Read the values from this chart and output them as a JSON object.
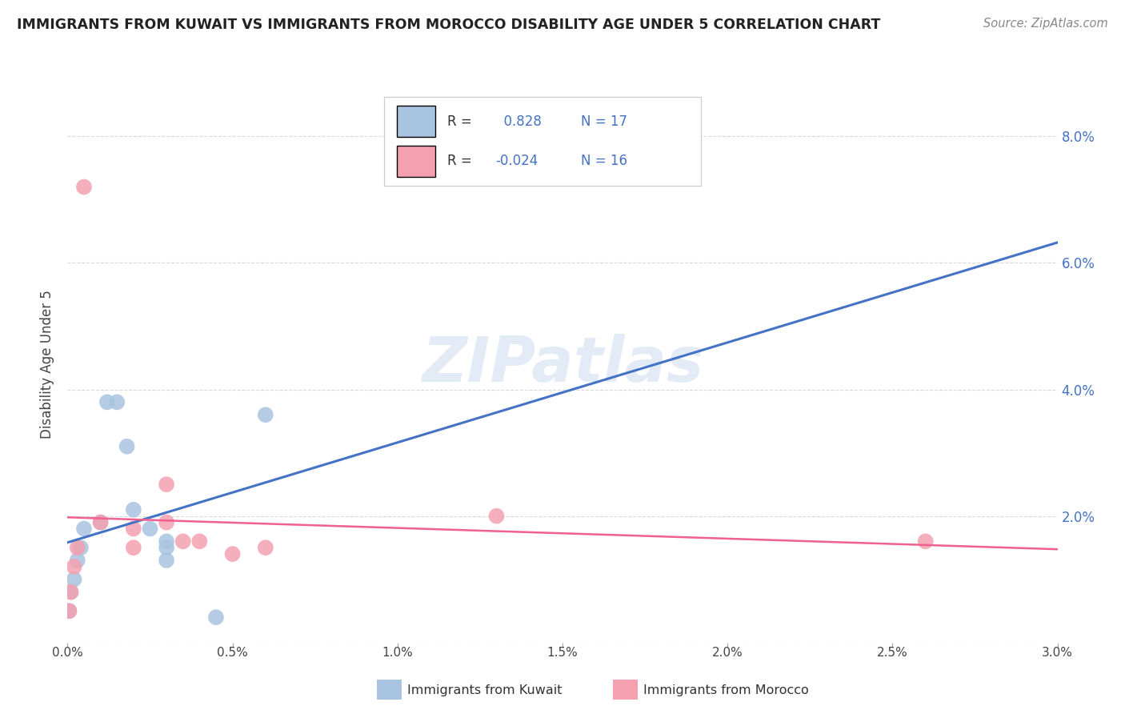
{
  "title": "IMMIGRANTS FROM KUWAIT VS IMMIGRANTS FROM MOROCCO DISABILITY AGE UNDER 5 CORRELATION CHART",
  "source": "Source: ZipAtlas.com",
  "ylabel": "Disability Age Under 5",
  "xlim": [
    0.0,
    0.03
  ],
  "ylim": [
    0.0,
    0.088
  ],
  "xtick_vals": [
    0.0,
    0.005,
    0.01,
    0.015,
    0.02,
    0.025,
    0.03
  ],
  "xtick_labels": [
    "0.0%",
    "0.5%",
    "1.0%",
    "1.5%",
    "2.0%",
    "2.5%",
    "3.0%"
  ],
  "ytick_vals": [
    0.0,
    0.02,
    0.04,
    0.06,
    0.08
  ],
  "ytick_labels": [
    "",
    "2.0%",
    "4.0%",
    "6.0%",
    "8.0%"
  ],
  "kuwait_x": [
    5e-05,
    0.0001,
    0.0002,
    0.0003,
    0.0004,
    0.0005,
    0.001,
    0.0012,
    0.0015,
    0.0018,
    0.002,
    0.0025,
    0.003,
    0.003,
    0.003,
    0.0045,
    0.006
  ],
  "kuwait_y": [
    0.005,
    0.008,
    0.01,
    0.013,
    0.015,
    0.018,
    0.019,
    0.038,
    0.038,
    0.031,
    0.021,
    0.018,
    0.016,
    0.015,
    0.013,
    0.004,
    0.036
  ],
  "morocco_x": [
    5e-05,
    0.0001,
    0.0002,
    0.0003,
    0.0005,
    0.001,
    0.002,
    0.002,
    0.003,
    0.003,
    0.0035,
    0.004,
    0.005,
    0.006,
    0.013,
    0.026
  ],
  "morocco_y": [
    0.005,
    0.008,
    0.012,
    0.015,
    0.072,
    0.019,
    0.018,
    0.015,
    0.025,
    0.019,
    0.016,
    0.016,
    0.014,
    0.015,
    0.02,
    0.016
  ],
  "kuwait_color": "#a8c4e0",
  "morocco_color": "#f4a0b0",
  "kuwait_line_color": "#4472c4",
  "morocco_line_color": "#f06090",
  "kuwait_R": 0.828,
  "kuwait_N": 17,
  "morocco_R": -0.024,
  "morocco_N": 16,
  "legend_label_kuwait": "Immigrants from Kuwait",
  "legend_label_morocco": "Immigrants from Morocco",
  "watermark_text": "ZIPatlas",
  "background_color": "#ffffff",
  "grid_color": "#d8d8d8"
}
